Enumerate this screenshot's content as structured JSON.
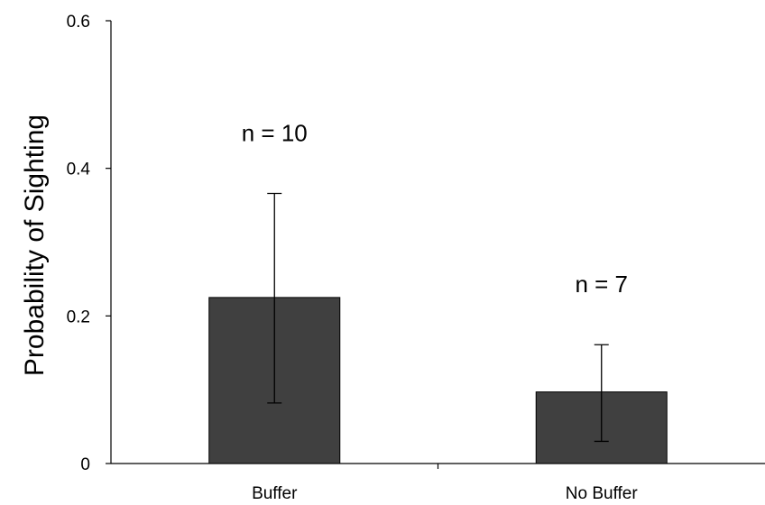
{
  "chart_data": {
    "type": "bar",
    "categories": [
      "Buffer",
      "No Buffer"
    ],
    "values": [
      0.225,
      0.097
    ],
    "error": [
      {
        "low": 0.082,
        "high": 0.366
      },
      {
        "low": 0.03,
        "high": 0.161
      }
    ],
    "annotations": [
      "n = 10",
      "n = 7"
    ],
    "title": "",
    "xlabel": "",
    "ylabel": "Probability of Sighting",
    "ylim": [
      0,
      0.6
    ],
    "yticks": [
      0,
      0.2,
      0.4,
      0.6
    ],
    "ytick_labels": [
      "0",
      "0.2",
      "0.4",
      "0.6"
    ],
    "grid": false,
    "bar_color": "#404040"
  }
}
